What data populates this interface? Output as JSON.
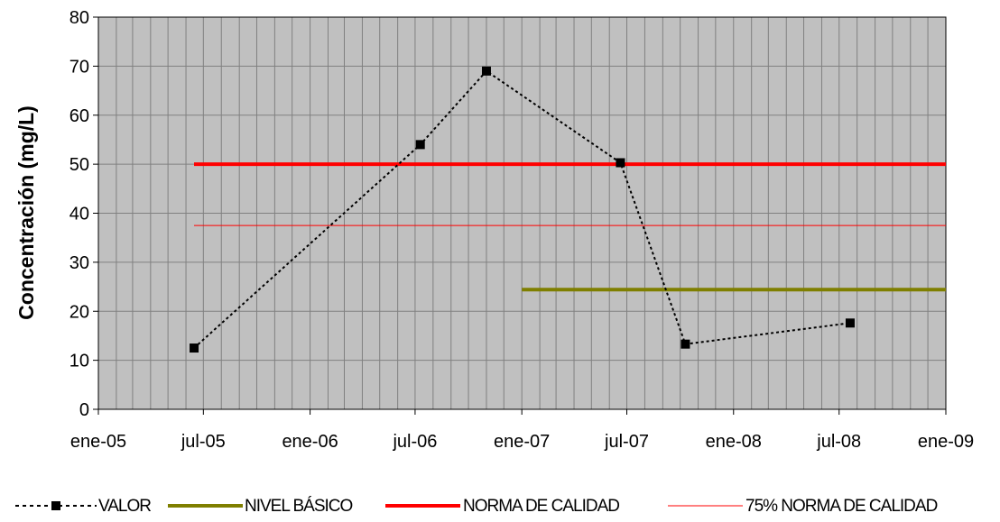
{
  "chart_data": {
    "type": "line",
    "title": "",
    "xlabel": "",
    "ylabel": "Concentración (mg/L)",
    "xlim": [
      "2005-01-01",
      "2009-01-01"
    ],
    "ylim": [
      0,
      80
    ],
    "x_ticks": [
      "ene-05",
      "jul-05",
      "ene-06",
      "jul-06",
      "ene-07",
      "jul-07",
      "ene-08",
      "jul-08",
      "ene-09"
    ],
    "y_ticks": [
      0,
      10,
      20,
      30,
      40,
      50,
      60,
      70,
      80
    ],
    "grid": true,
    "legend_position": "bottom",
    "series": [
      {
        "name": "VALOR",
        "style": "dotted-line-square-markers",
        "color": "#000000",
        "x": [
          "2005-06-15",
          "2006-07-10",
          "2006-11-01",
          "2007-06-20",
          "2007-10-10",
          "2008-07-20"
        ],
        "y": [
          12.5,
          54,
          69,
          50.3,
          13.3,
          17.6
        ]
      },
      {
        "name": "NIVEL BÁSICO",
        "style": "solid-thick",
        "color": "#7f7f00",
        "x": [
          "2007-01-01",
          "2009-01-01"
        ],
        "y": [
          24.4,
          24.4
        ]
      },
      {
        "name": "NORMA DE CALIDAD",
        "style": "solid-thick",
        "color": "#ff0000",
        "x": [
          "2005-06-15",
          "2009-01-01"
        ],
        "y": [
          50,
          50
        ]
      },
      {
        "name": "75% NORMA DE CALIDAD",
        "style": "solid-thin",
        "color": "#ff0000",
        "x": [
          "2005-06-15",
          "2009-01-01"
        ],
        "y": [
          37.5,
          37.5
        ]
      }
    ],
    "colors": {
      "plot_background": "#c0c0c0",
      "grid": "#808080"
    }
  }
}
